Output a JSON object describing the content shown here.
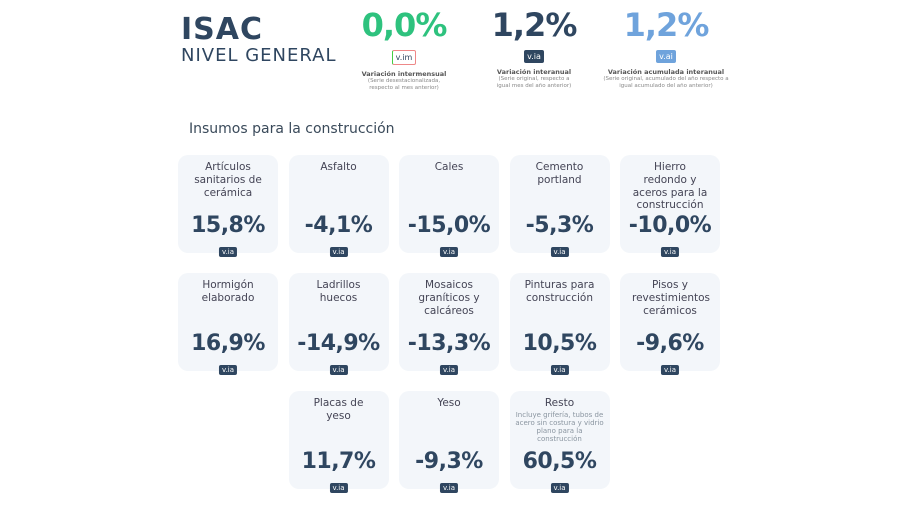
{
  "header": {
    "title": "ISAC",
    "subtitle": "NIVEL GENERAL"
  },
  "kpis": [
    {
      "value": "0,0%",
      "badge": "v.im",
      "label": "Variación intermensual",
      "desc": "(Serie desestacionalizada, respecto al mes anterior)",
      "color": "#2ec27e"
    },
    {
      "value": "1,2%",
      "badge": "v.ia",
      "label": "Variación interanual",
      "desc": "(Serie original, respecto a igual mes del año anterior)",
      "color": "#2f4660"
    },
    {
      "value": "1,2%",
      "badge": "v.ai",
      "label": "Variación acumulada interanual",
      "desc": "(Serie original, acumulado del año respecto a igual acumulado del año anterior)",
      "color": "#6fa3dc"
    }
  ],
  "section_title": "Insumos para la construcción",
  "cards": [
    {
      "name": "Artículos sanitarios de cerámica",
      "value": "15,8%",
      "badge": "v.ia"
    },
    {
      "name": "Asfalto",
      "value": "-4,1%",
      "badge": "v.ia"
    },
    {
      "name": "Cales",
      "value": "-15,0%",
      "badge": "v.ia"
    },
    {
      "name": "Cemento portland",
      "value": "-5,3%",
      "badge": "v.ia"
    },
    {
      "name": "Hierro redondo y aceros para la construcción",
      "value": "-10,0%",
      "badge": "v.ia"
    },
    {
      "name": "Hormigón elaborado",
      "value": "16,9%",
      "badge": "v.ia"
    },
    {
      "name": "Ladrillos huecos",
      "value": "-14,9%",
      "badge": "v.ia"
    },
    {
      "name": "Mosaicos graníticos y calcáreos",
      "value": "-13,3%",
      "badge": "v.ia"
    },
    {
      "name": "Pinturas para construcción",
      "value": "10,5%",
      "badge": "v.ia"
    },
    {
      "name": "Pisos y revestimientos cerámicos",
      "value": "-9,6%",
      "badge": "v.ia"
    },
    {
      "name": "Placas de yeso",
      "value": "11,7%",
      "badge": "v.ia"
    },
    {
      "name": "Yeso",
      "value": "-9,3%",
      "badge": "v.ia"
    },
    {
      "name": "Resto",
      "note": "Incluye grifería, tubos de acero sin costura y vidrio plano para la construcción",
      "value": "60,5%",
      "badge": "v.ia"
    }
  ]
}
